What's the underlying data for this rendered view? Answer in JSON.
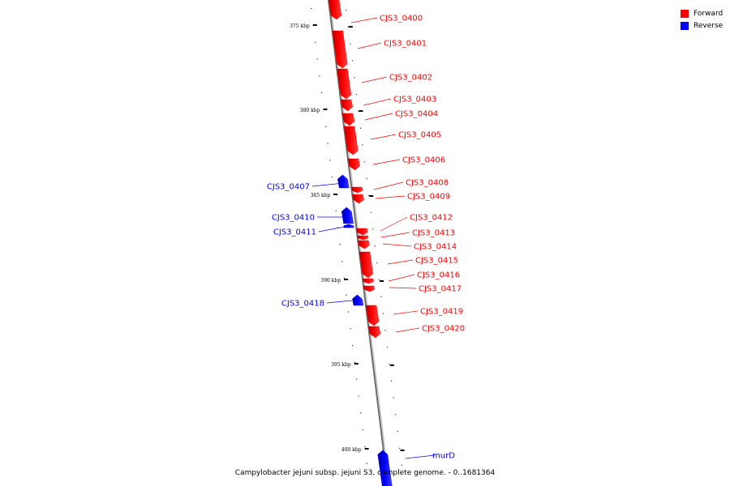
{
  "legend": [
    {
      "label": "Forward",
      "color": "#ff0000"
    },
    {
      "label": "Reverse",
      "color": "#0000ff"
    }
  ],
  "caption": "Campylobacter jejuni subsp. jejuni S3, complete genome. - 0..1681364",
  "ticks": [
    "375 kbp",
    "380 kbp",
    "385 kbp",
    "390 kbp",
    "395 kbp",
    "400 kbp"
  ],
  "genes": [
    {
      "name": "CJS3_0400",
      "strand": "forward"
    },
    {
      "name": "CJS3_0401",
      "strand": "forward"
    },
    {
      "name": "CJS3_0402",
      "strand": "forward"
    },
    {
      "name": "CJS3_0403",
      "strand": "forward"
    },
    {
      "name": "CJS3_0404",
      "strand": "forward"
    },
    {
      "name": "CJS3_0405",
      "strand": "forward"
    },
    {
      "name": "CJS3_0406",
      "strand": "forward"
    },
    {
      "name": "CJS3_0407",
      "strand": "reverse"
    },
    {
      "name": "CJS3_0408",
      "strand": "forward"
    },
    {
      "name": "CJS3_0409",
      "strand": "forward"
    },
    {
      "name": "CJS3_0410",
      "strand": "reverse"
    },
    {
      "name": "CJS3_0411",
      "strand": "reverse"
    },
    {
      "name": "CJS3_0412",
      "strand": "forward"
    },
    {
      "name": "CJS3_0413",
      "strand": "forward"
    },
    {
      "name": "CJS3_0414",
      "strand": "forward"
    },
    {
      "name": "CJS3_0415",
      "strand": "forward"
    },
    {
      "name": "CJS3_0416",
      "strand": "forward"
    },
    {
      "name": "CJS3_0417",
      "strand": "forward"
    },
    {
      "name": "CJS3_0418",
      "strand": "reverse"
    },
    {
      "name": "CJS3_0419",
      "strand": "forward"
    },
    {
      "name": "CJS3_0420",
      "strand": "forward"
    },
    {
      "name": "murD",
      "strand": "reverse"
    }
  ]
}
